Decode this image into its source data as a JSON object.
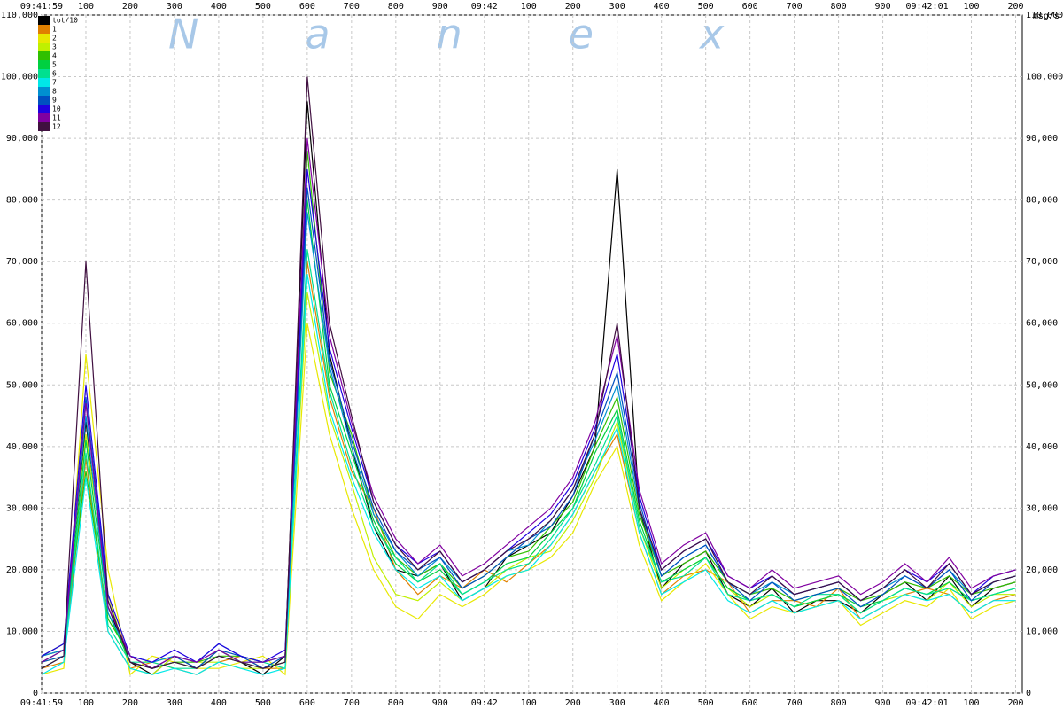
{
  "chart_data": {
    "type": "line",
    "watermark": "Nanex",
    "y_label": "msg/s",
    "x": [
      0,
      50,
      100,
      150,
      200,
      250,
      300,
      350,
      400,
      450,
      500,
      550,
      600,
      650,
      700,
      750,
      800,
      850,
      900,
      950,
      1000,
      1050,
      1100,
      1150,
      1200,
      1250,
      1300,
      1350,
      1400,
      1450,
      1500,
      1550,
      1600,
      1650,
      1700,
      1750,
      1800,
      1850,
      1900,
      1950,
      2000,
      2050,
      2100,
      2150,
      2200
    ],
    "xlim": [
      0,
      2215
    ],
    "xticks": [
      {
        "value": 0,
        "label": "09:41:59"
      },
      100,
      200,
      300,
      400,
      500,
      600,
      700,
      800,
      900,
      {
        "value": 1000,
        "label": "09:42"
      },
      {
        "value": 1100,
        "label": "100"
      },
      {
        "value": 1200,
        "label": "200"
      },
      {
        "value": 1300,
        "label": "300"
      },
      {
        "value": 1400,
        "label": "400"
      },
      {
        "value": 1500,
        "label": "500"
      },
      {
        "value": 1600,
        "label": "600"
      },
      {
        "value": 1700,
        "label": "700"
      },
      {
        "value": 1800,
        "label": "800"
      },
      {
        "value": 1900,
        "label": "900"
      },
      {
        "value": 2000,
        "label": "09:42:01"
      },
      {
        "value": 2100,
        "label": "100"
      },
      {
        "value": 2200,
        "label": "200"
      }
    ],
    "ylim": [
      0,
      110000
    ],
    "yticks": [
      0,
      {
        "value": 10000,
        "label": "10,000"
      },
      {
        "value": 20000,
        "label": "20,000"
      },
      {
        "value": 30000,
        "label": "30,000"
      },
      {
        "value": 40000,
        "label": "40,000"
      },
      {
        "value": 50000,
        "label": "50,000"
      },
      {
        "value": 60000,
        "label": "60,000"
      },
      {
        "value": 70000,
        "label": "70,000"
      },
      {
        "value": 80000,
        "label": "80,000"
      },
      {
        "value": 90000,
        "label": "90,000"
      },
      {
        "value": 100000,
        "label": "100,000"
      },
      {
        "value": 110000,
        "label": "110,000"
      }
    ],
    "grid": true,
    "legend": "top-left",
    "series": [
      {
        "name": "tot/10",
        "color": "#000000",
        "values": [
          6000,
          7000,
          44000,
          14000,
          5000,
          3000,
          6000,
          4000,
          7000,
          5000,
          3000,
          6000,
          96000,
          55000,
          40000,
          27000,
          20000,
          19000,
          21000,
          15000,
          17000,
          22000,
          24000,
          26000,
          32000,
          40000,
          85000,
          30000,
          17000,
          21000,
          23000,
          16000,
          14000,
          17000,
          13000,
          15000,
          15000,
          13000,
          16000,
          18000,
          15000,
          19000,
          14000,
          17000,
          18000
        ]
      },
      {
        "name": "1",
        "color": "#e08000",
        "values": [
          4000,
          5000,
          38000,
          10000,
          4000,
          5000,
          4000,
          3000,
          5000,
          6000,
          4000,
          4000,
          70000,
          48000,
          36000,
          30000,
          20000,
          16000,
          19000,
          17000,
          20000,
          18000,
          21000,
          24000,
          29000,
          36000,
          42000,
          26000,
          16000,
          19000,
          20000,
          18000,
          13000,
          15000,
          15000,
          14000,
          17000,
          12000,
          14000,
          16000,
          17000,
          16000,
          13000,
          15000,
          16000
        ]
      },
      {
        "name": "2",
        "color": "#e8e800",
        "values": [
          3000,
          4000,
          55000,
          20000,
          3000,
          6000,
          5000,
          4000,
          4000,
          5000,
          6000,
          3000,
          60000,
          42000,
          30000,
          20000,
          14000,
          12000,
          16000,
          14000,
          16000,
          19000,
          20000,
          22000,
          26000,
          34000,
          40000,
          24000,
          15000,
          18000,
          21000,
          16000,
          12000,
          14000,
          13000,
          14000,
          15000,
          11000,
          13000,
          15000,
          14000,
          17000,
          12000,
          14000,
          15000
        ]
      },
      {
        "name": "3",
        "color": "#c0f000",
        "values": [
          5000,
          6000,
          42000,
          16000,
          4000,
          3000,
          6000,
          5000,
          5000,
          4000,
          4000,
          5000,
          65000,
          45000,
          34000,
          22000,
          16000,
          15000,
          18000,
          15000,
          17000,
          20000,
          22000,
          23000,
          28000,
          35000,
          44000,
          27000,
          17000,
          20000,
          22000,
          17000,
          14000,
          16000,
          14000,
          15000,
          16000,
          13000,
          15000,
          16000,
          15000,
          18000,
          14000,
          16000,
          16000
        ]
      },
      {
        "name": "4",
        "color": "#30c000",
        "values": [
          6000,
          8000,
          36000,
          12000,
          6000,
          4000,
          5000,
          5000,
          6000,
          6000,
          5000,
          6000,
          88000,
          52000,
          42000,
          29000,
          22000,
          19000,
          21000,
          17000,
          19000,
          22000,
          23000,
          27000,
          31000,
          40000,
          48000,
          29000,
          19000,
          21000,
          23000,
          18000,
          16000,
          17000,
          15000,
          16000,
          17000,
          15000,
          16000,
          18000,
          17000,
          19000,
          16000,
          17000,
          18000
        ]
      },
      {
        "name": "5",
        "color": "#00d040",
        "values": [
          5000,
          7000,
          41000,
          13000,
          5000,
          4000,
          5000,
          4000,
          7000,
          5000,
          4000,
          5000,
          80000,
          50000,
          39000,
          28000,
          21000,
          18000,
          20000,
          16000,
          18000,
          21000,
          22000,
          26000,
          30000,
          39000,
          46000,
          28000,
          18000,
          20000,
          22000,
          17000,
          15000,
          16000,
          14000,
          15000,
          16000,
          14000,
          15000,
          17000,
          16000,
          18000,
          15000,
          16000,
          17000
        ]
      },
      {
        "name": "6",
        "color": "#00e090",
        "values": [
          4000,
          6000,
          39000,
          11000,
          5000,
          5000,
          4000,
          4000,
          6000,
          5000,
          5000,
          4000,
          72000,
          49000,
          37000,
          27000,
          22000,
          18000,
          21000,
          16000,
          18000,
          20000,
          21000,
          25000,
          30000,
          37000,
          45000,
          27000,
          18000,
          19000,
          22000,
          16000,
          15000,
          16000,
          14000,
          16000,
          16000,
          13000,
          15000,
          17000,
          16000,
          17000,
          15000,
          16000,
          17000
        ]
      },
      {
        "name": "7",
        "color": "#00e8e8",
        "values": [
          3000,
          5000,
          35000,
          10000,
          4000,
          3000,
          4000,
          3000,
          5000,
          4000,
          3000,
          4000,
          68000,
          46000,
          35000,
          26000,
          20000,
          17000,
          19000,
          15000,
          17000,
          19000,
          20000,
          24000,
          29000,
          36000,
          43000,
          26000,
          16000,
          18000,
          20000,
          15000,
          13000,
          15000,
          13000,
          14000,
          15000,
          12000,
          14000,
          16000,
          15000,
          16000,
          13000,
          15000,
          15000
        ]
      },
      {
        "name": "8",
        "color": "#0090d0",
        "values": [
          6000,
          7000,
          45000,
          13000,
          6000,
          5000,
          6000,
          5000,
          8000,
          6000,
          5000,
          6000,
          78000,
          53000,
          40000,
          29000,
          23000,
          19000,
          22000,
          18000,
          20000,
          23000,
          24000,
          28000,
          33000,
          41000,
          50000,
          30000,
          19000,
          22000,
          24000,
          18000,
          16000,
          18000,
          16000,
          17000,
          18000,
          15000,
          17000,
          19000,
          17000,
          20000,
          16000,
          18000,
          19000
        ]
      },
      {
        "name": "9",
        "color": "#0050c0",
        "values": [
          5000,
          6000,
          48000,
          15000,
          5000,
          4000,
          6000,
          4000,
          7000,
          6000,
          4000,
          6000,
          82000,
          54000,
          41000,
          30000,
          23000,
          20000,
          22000,
          17000,
          19000,
          22000,
          25000,
          27000,
          32000,
          42000,
          52000,
          31000,
          19000,
          22000,
          24000,
          18000,
          15000,
          18000,
          15000,
          16000,
          17000,
          14000,
          16000,
          19000,
          17000,
          20000,
          15000,
          18000,
          19000
        ]
      },
      {
        "name": "10",
        "color": "#2000e0",
        "values": [
          6000,
          8000,
          50000,
          16000,
          6000,
          5000,
          7000,
          5000,
          8000,
          6000,
          5000,
          7000,
          85000,
          56000,
          43000,
          31000,
          24000,
          21000,
          23000,
          18000,
          20000,
          23000,
          26000,
          29000,
          34000,
          43000,
          55000,
          32000,
          20000,
          23000,
          25000,
          19000,
          17000,
          19000,
          16000,
          17000,
          18000,
          15000,
          17000,
          20000,
          18000,
          21000,
          16000,
          19000,
          20000
        ]
      },
      {
        "name": "11",
        "color": "#8000a0",
        "values": [
          5000,
          7000,
          47000,
          14000,
          6000,
          4000,
          6000,
          5000,
          7000,
          5000,
          5000,
          6000,
          90000,
          58000,
          44000,
          32000,
          25000,
          21000,
          24000,
          19000,
          21000,
          24000,
          27000,
          30000,
          35000,
          44000,
          58000,
          33000,
          21000,
          24000,
          26000,
          19000,
          17000,
          20000,
          17000,
          18000,
          19000,
          16000,
          18000,
          21000,
          18000,
          22000,
          17000,
          19000,
          20000
        ]
      },
      {
        "name": "12",
        "color": "#401040",
        "values": [
          4000,
          6000,
          70000,
          15000,
          5000,
          4000,
          5000,
          4000,
          6000,
          5000,
          4000,
          5000,
          100000,
          60000,
          45000,
          31000,
          24000,
          20000,
          23000,
          18000,
          20000,
          23000,
          25000,
          28000,
          33000,
          42000,
          60000,
          30000,
          20000,
          23000,
          25000,
          18000,
          16000,
          19000,
          16000,
          17000,
          18000,
          15000,
          17000,
          20000,
          17000,
          21000,
          16000,
          18000,
          19000
        ]
      }
    ]
  }
}
